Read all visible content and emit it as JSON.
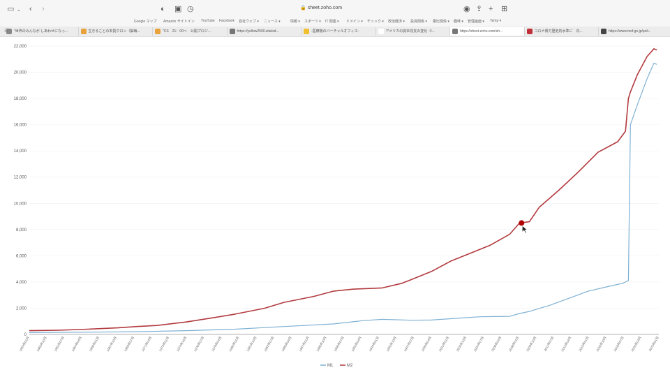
{
  "browser": {
    "url": "sheet.zoho.com",
    "bookmarks": [
      "Google マップ",
      "Amazon サイトイン",
      "YouTube",
      "Facebook",
      "自社ウェブ ▾",
      "ニュース ▾",
      "情報 ▾",
      "スポーツ ▾",
      "IT 関連 ▾",
      "ドメイン ▾",
      "チュック ▾",
      "政治経済 ▾",
      "投資関係 ▾",
      "量比関係 ▾",
      "趣味 ▾",
      "管理画面 ▾",
      "Temp ▾"
    ],
    "tabs": [
      {
        "label": "\"世界のみんなが しあわせになっ...",
        "color": "#888888"
      },
      {
        "label": "生きることの本質クロン（脳梅...",
        "color": "#e8a23c"
      },
      {
        "label": "\"CS　21：00〜　公開プロジ...",
        "color": "#e8a23c"
      },
      {
        "label": "https://yellow2500.sita/sd...",
        "color": "#777777"
      },
      {
        "label": "-医療機のバーチャルオフィス-",
        "color": "#f0c030"
      },
      {
        "label": "アメリカの資本収支の変化（I...",
        "color": "#ffffff"
      },
      {
        "label": "https://sheet.zoho.com/sh...",
        "color": "#777777"
      },
      {
        "label": "コロナ禍で歴史的水準に　舟...",
        "color": "#c0303a"
      },
      {
        "label": "https://www.mof.go.jp/poli...",
        "color": "#444444"
      }
    ],
    "active_tab": 6
  },
  "colors": {
    "m1": "#7fb1d3",
    "m2": "#b23a3e",
    "cursor": "#b00000"
  },
  "chart_data": {
    "type": "line",
    "ylim": [
      0,
      22000
    ],
    "yticks": [
      "0",
      "2,000",
      "4,000",
      "6,000",
      "8,000",
      "10,000",
      "12,000",
      "14,000",
      "16,000",
      "18,000",
      "20,000",
      "22,000"
    ],
    "xticks": [
      "1959年01月",
      "1960年10月",
      "1962年07月",
      "1964年04月",
      "1966年01月",
      "1967年10月",
      "1969年07月",
      "1971年04月",
      "1973年01月",
      "1974年10月",
      "1976年07月",
      "1978年04月",
      "1980年01月",
      "1981年10月",
      "1983年07月",
      "1985年04月",
      "1987年01月",
      "1988年10月",
      "1990年07月",
      "1992年04月",
      "1994年01月",
      "1995年10月",
      "1997年07月",
      "1999年04月",
      "2001年01月",
      "2002年10月",
      "2004年07月",
      "2006年04月",
      "2008年01月",
      "2009年10月",
      "2011年07月",
      "2013年04月",
      "2015年01月",
      "2016年10月",
      "2018年07月",
      "2020年04月",
      "2022年01月"
    ],
    "x_range": [
      1959.0,
      2023.2
    ],
    "series": [
      {
        "name": "M1",
        "x": [
          1959,
          1965,
          1970,
          1975,
          1980,
          1985,
          1990,
          1993,
          1995,
          1998,
          2000,
          2003,
          2005,
          2008,
          2009,
          2010,
          2012,
          2014,
          2016,
          2018,
          2019.5,
          2020.1,
          2020.3,
          2021,
          2022,
          2022.7,
          2023
        ],
        "values": [
          140,
          170,
          210,
          290,
          400,
          600,
          800,
          1050,
          1150,
          1080,
          1100,
          1250,
          1350,
          1380,
          1600,
          1750,
          2200,
          2750,
          3300,
          3650,
          3900,
          4100,
          16000,
          17500,
          19500,
          20700,
          20600
        ]
      },
      {
        "name": "M2",
        "x": [
          1959,
          1962,
          1965,
          1968,
          1970,
          1972,
          1975,
          1978,
          1980,
          1983,
          1985,
          1988,
          1990,
          1992,
          1995,
          1997,
          1998,
          2000,
          2002,
          2004,
          2006,
          2008,
          2009,
          2010,
          2011,
          2013,
          2015,
          2017,
          2019,
          2019.8,
          2020.1,
          2020.3,
          2021,
          2022,
          2022.7,
          2023
        ],
        "values": [
          290,
          320,
          400,
          500,
          600,
          680,
          950,
          1300,
          1550,
          2000,
          2450,
          2900,
          3300,
          3450,
          3550,
          3900,
          4200,
          4800,
          5600,
          6200,
          6800,
          7650,
          8500,
          8600,
          9700,
          11000,
          12400,
          13900,
          14700,
          15500,
          18000,
          18500,
          19800,
          21200,
          21800,
          21700
        ]
      }
    ],
    "highlight": {
      "series": "M2",
      "x": 2009.2,
      "y": 8500
    }
  }
}
